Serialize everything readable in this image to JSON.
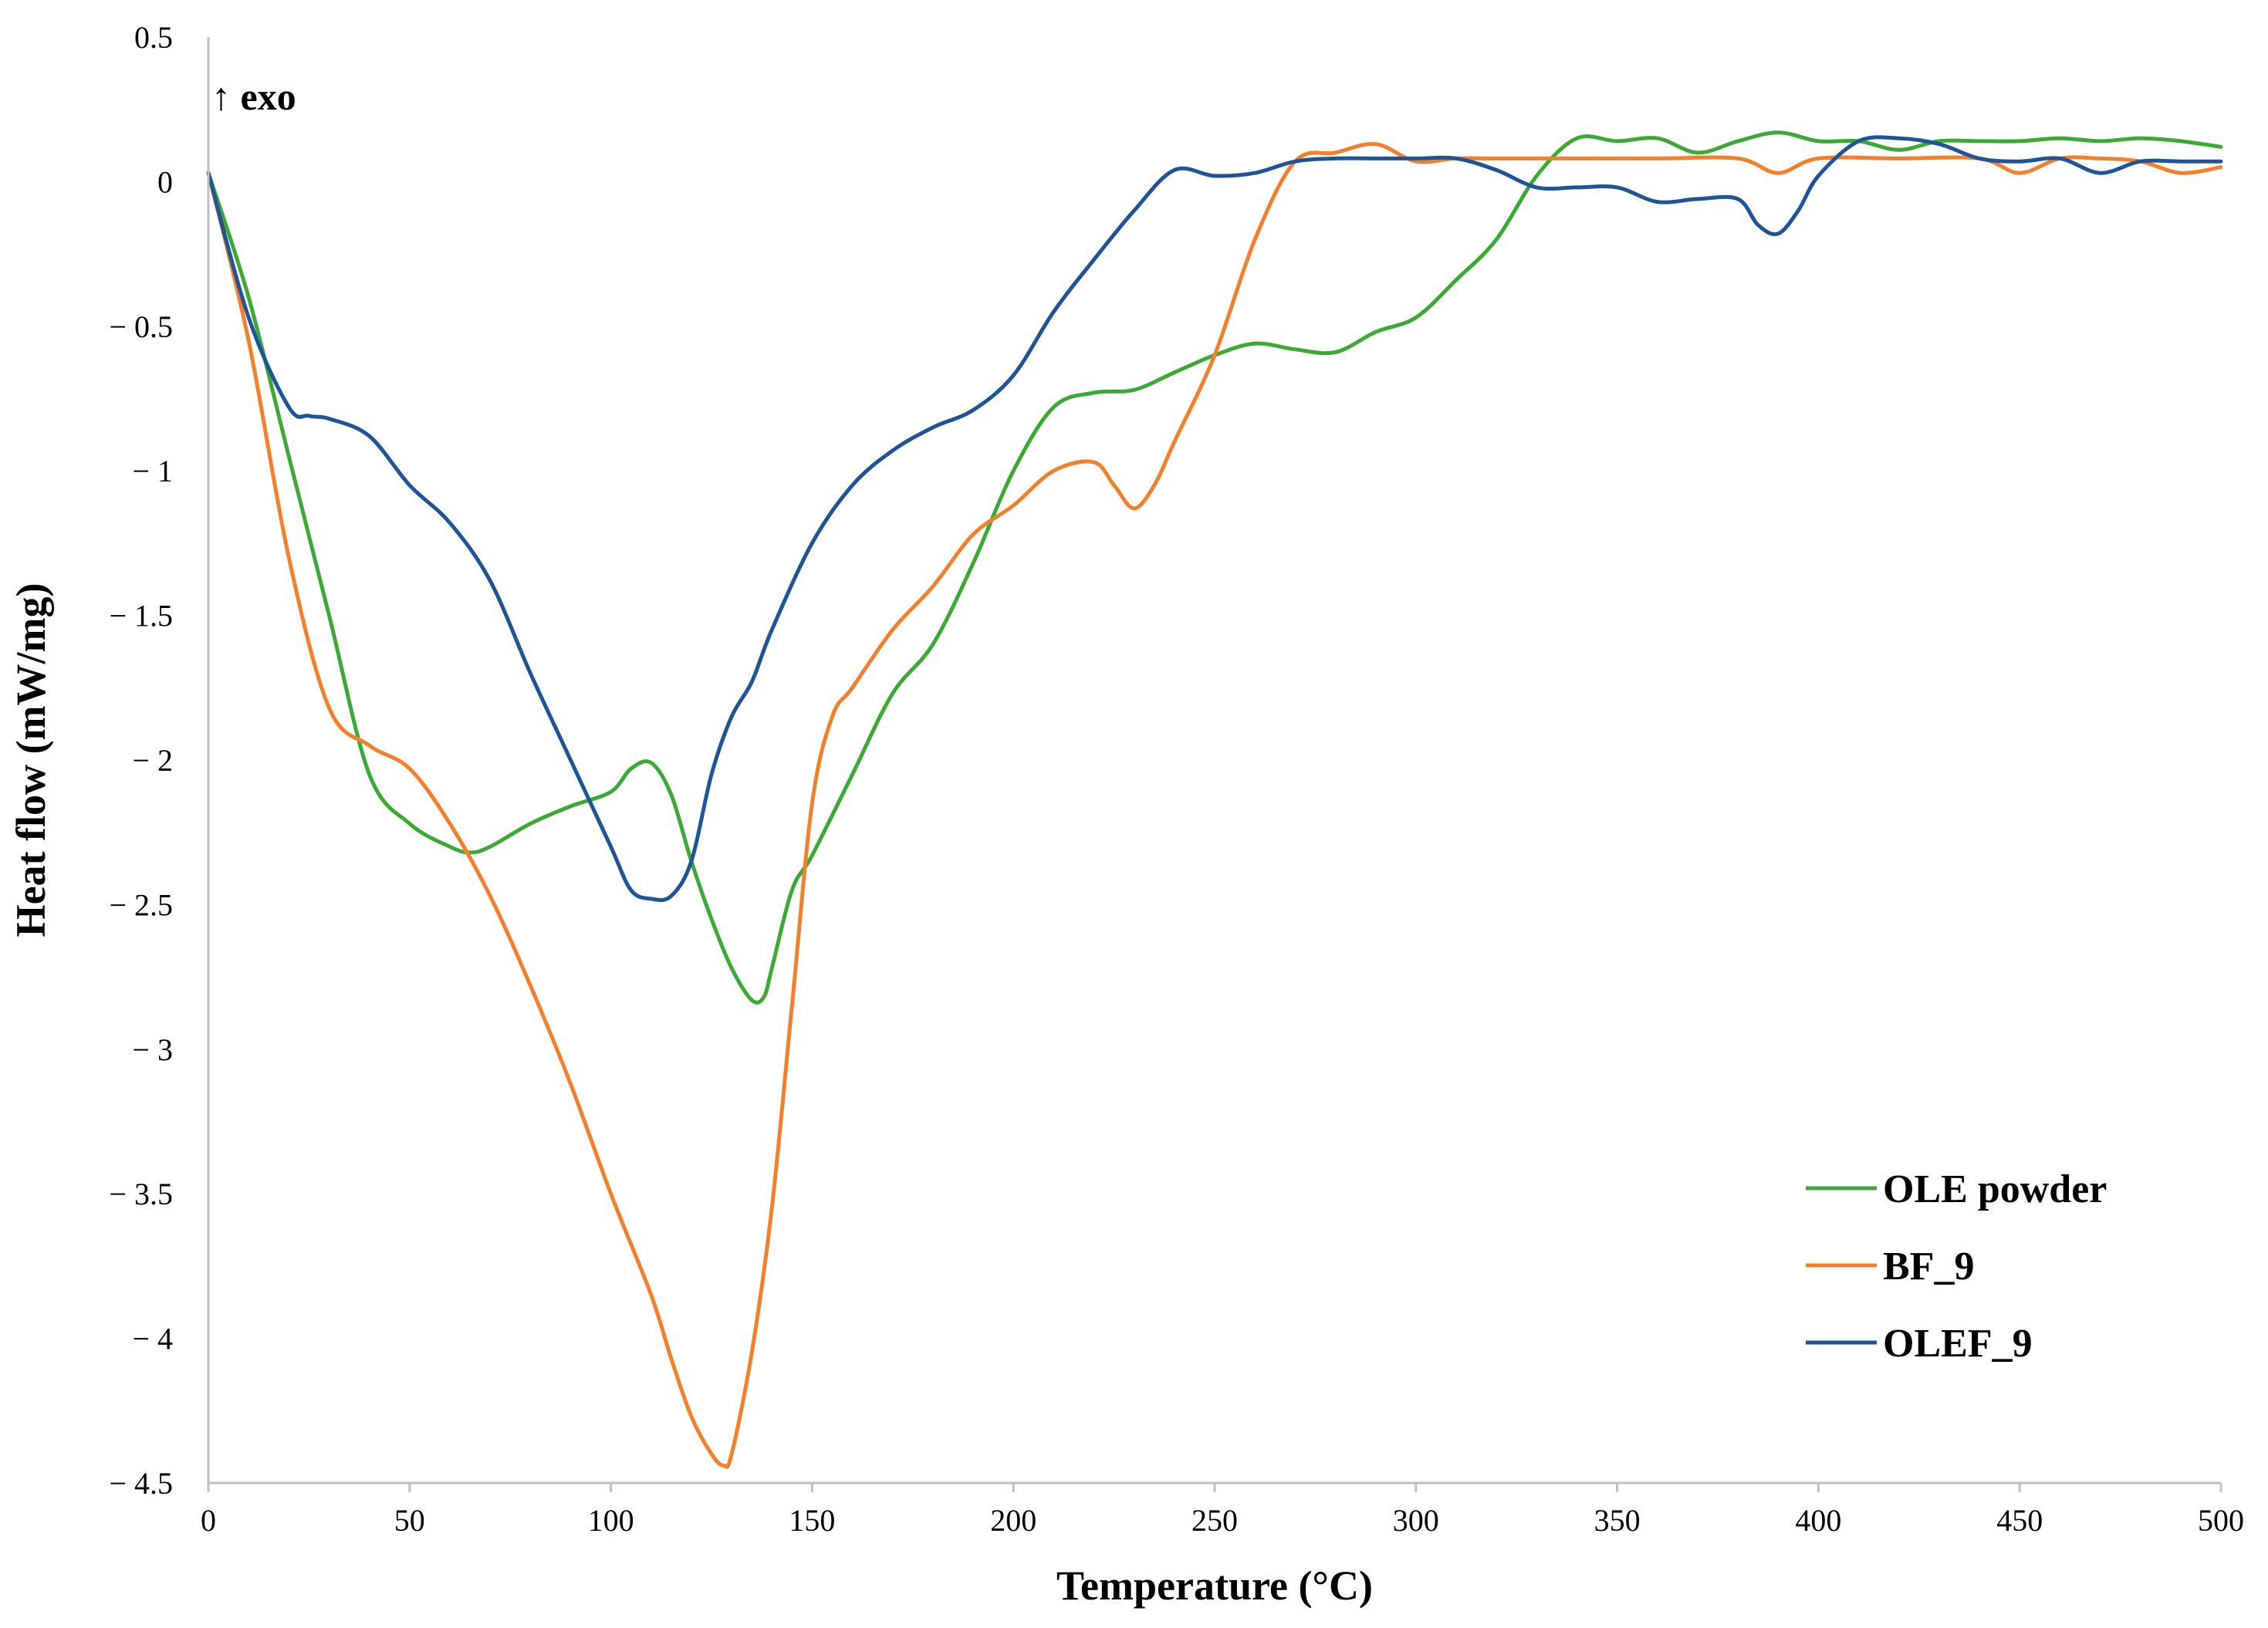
{
  "chart_data": {
    "type": "line",
    "title": "",
    "xlabel": "Temperature  (°C)",
    "ylabel": "Heat flow (mW/mg)",
    "annotation": "↑ exo",
    "xlim": [
      0,
      500
    ],
    "ylim": [
      -4.5,
      0.5
    ],
    "xticks": [
      0,
      50,
      100,
      150,
      200,
      250,
      300,
      350,
      400,
      450,
      500
    ],
    "yticks": [
      0.5,
      0,
      -0.5,
      -1,
      -1.5,
      -2,
      -2.5,
      -3,
      -3.5,
      -4,
      -4.5
    ],
    "xtick_labels": [
      "0",
      "50",
      "100",
      "150",
      "200",
      "250",
      "300",
      "350",
      "400",
      "450",
      "500"
    ],
    "ytick_labels": [
      "0.5",
      "0",
      "− 0.5",
      "− 1",
      "− 1.5",
      "− 2",
      "− 2.5",
      "− 3",
      "− 3.5",
      "− 4",
      "− 4.5"
    ],
    "grid": false,
    "legend_position": "bottom-right",
    "series": [
      {
        "name": "OLE powder",
        "color": "#3aaa35",
        "x": [
          0,
          10,
          20,
          30,
          40,
          50,
          60,
          65,
          70,
          80,
          90,
          100,
          105,
          110,
          115,
          120,
          125,
          130,
          135,
          138,
          140,
          145,
          150,
          160,
          170,
          180,
          190,
          200,
          210,
          220,
          230,
          240,
          250,
          260,
          270,
          280,
          290,
          300,
          310,
          320,
          330,
          340,
          350,
          360,
          370,
          380,
          390,
          400,
          410,
          420,
          430,
          440,
          450,
          460,
          470,
          480,
          490,
          500
        ],
        "y": [
          0.03,
          -0.4,
          -0.95,
          -1.5,
          -2.05,
          -2.22,
          -2.3,
          -2.32,
          -2.3,
          -2.22,
          -2.16,
          -2.11,
          -2.03,
          -2.01,
          -2.12,
          -2.35,
          -2.55,
          -2.72,
          -2.83,
          -2.82,
          -2.72,
          -2.45,
          -2.33,
          -2.05,
          -1.77,
          -1.6,
          -1.32,
          -1.0,
          -0.78,
          -0.73,
          -0.72,
          -0.66,
          -0.6,
          -0.56,
          -0.58,
          -0.59,
          -0.52,
          -0.47,
          -0.34,
          -0.2,
          0.02,
          0.15,
          0.14,
          0.15,
          0.1,
          0.14,
          0.17,
          0.14,
          0.14,
          0.11,
          0.14,
          0.14,
          0.14,
          0.15,
          0.14,
          0.15,
          0.14,
          0.12
        ]
      },
      {
        "name": "BF_9",
        "color": "#f47f2b",
        "x": [
          0,
          10,
          20,
          30,
          40,
          50,
          60,
          70,
          80,
          90,
          100,
          110,
          115,
          120,
          125,
          128,
          130,
          135,
          140,
          145,
          150,
          155,
          160,
          170,
          180,
          190,
          200,
          210,
          220,
          225,
          230,
          235,
          240,
          250,
          260,
          270,
          280,
          290,
          300,
          310,
          320,
          340,
          360,
          380,
          390,
          400,
          420,
          440,
          450,
          460,
          470,
          480,
          490,
          500
        ],
        "y": [
          0.03,
          -0.55,
          -1.3,
          -1.82,
          -1.95,
          -2.03,
          -2.22,
          -2.47,
          -2.78,
          -3.12,
          -3.5,
          -3.85,
          -4.07,
          -4.27,
          -4.4,
          -4.44,
          -4.4,
          -4.05,
          -3.55,
          -2.85,
          -2.15,
          -1.85,
          -1.75,
          -1.55,
          -1.4,
          -1.22,
          -1.12,
          -1.0,
          -0.97,
          -1.05,
          -1.13,
          -1.05,
          -0.9,
          -0.6,
          -0.2,
          0.07,
          0.1,
          0.13,
          0.07,
          0.08,
          0.08,
          0.08,
          0.08,
          0.08,
          0.03,
          0.08,
          0.08,
          0.08,
          0.03,
          0.08,
          0.08,
          0.07,
          0.03,
          0.05
        ]
      },
      {
        "name": "OLEF_9",
        "color": "#1f5497",
        "x": [
          0,
          10,
          20,
          25,
          30,
          40,
          50,
          60,
          70,
          80,
          90,
          100,
          105,
          110,
          115,
          120,
          125,
          130,
          135,
          140,
          150,
          160,
          170,
          180,
          190,
          200,
          210,
          220,
          230,
          240,
          250,
          260,
          270,
          280,
          290,
          300,
          310,
          320,
          330,
          340,
          350,
          360,
          370,
          380,
          385,
          390,
          395,
          400,
          410,
          420,
          430,
          440,
          450,
          460,
          470,
          480,
          490,
          500
        ],
        "y": [
          0.03,
          -0.47,
          -0.78,
          -0.81,
          -0.82,
          -0.88,
          -1.05,
          -1.18,
          -1.38,
          -1.7,
          -2.0,
          -2.3,
          -2.45,
          -2.48,
          -2.47,
          -2.35,
          -2.05,
          -1.85,
          -1.73,
          -1.55,
          -1.25,
          -1.05,
          -0.93,
          -0.85,
          -0.79,
          -0.67,
          -0.45,
          -0.27,
          -0.1,
          0.04,
          0.02,
          0.03,
          0.07,
          0.08,
          0.08,
          0.08,
          0.08,
          0.04,
          -0.02,
          -0.02,
          -0.02,
          -0.07,
          -0.06,
          -0.06,
          -0.15,
          -0.18,
          -0.1,
          0.02,
          0.14,
          0.15,
          0.13,
          0.08,
          0.07,
          0.08,
          0.03,
          0.07,
          0.07,
          0.07
        ]
      }
    ]
  }
}
